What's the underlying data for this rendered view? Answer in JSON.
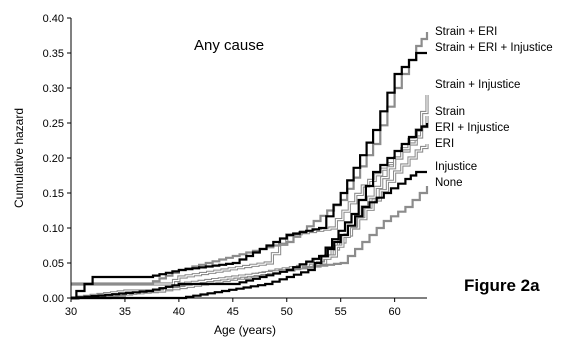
{
  "chart_data": {
    "type": "line",
    "title": "Any cause",
    "xlabel": "Age (years)",
    "ylabel": "Cumulative hazard",
    "xlim": [
      30,
      63
    ],
    "ylim": [
      0,
      0.4
    ],
    "x_ticks": [
      "30",
      "35",
      "40",
      "45",
      "50",
      "55",
      "60"
    ],
    "y_ticks": [
      "0.00",
      "0.05",
      "0.10",
      "0.15",
      "0.20",
      "0.25",
      "0.30",
      "0.35",
      "0.40"
    ],
    "grid": false,
    "figure_label": "Figure 2a",
    "colors": {
      "black": "#000000",
      "gray": "#8c8c8c"
    },
    "series": [
      {
        "name": "Strain + ERI",
        "color": "gray",
        "style": "single",
        "points": [
          [
            30,
            0.02
          ],
          [
            37,
            0.02
          ],
          [
            40,
            0.04
          ],
          [
            45,
            0.06
          ],
          [
            50,
            0.08
          ],
          [
            55,
            0.14
          ],
          [
            58,
            0.22
          ],
          [
            60,
            0.3
          ],
          [
            62,
            0.36
          ],
          [
            63,
            0.38
          ]
        ]
      },
      {
        "name": "Strain + ERI + Injustice",
        "color": "black",
        "style": "single",
        "points": [
          [
            30,
            0
          ],
          [
            30.5,
            0.01
          ],
          [
            32,
            0.03
          ],
          [
            37,
            0.03
          ],
          [
            40,
            0.04
          ],
          [
            45,
            0.05
          ],
          [
            50,
            0.09
          ],
          [
            53,
            0.1
          ],
          [
            55,
            0.15
          ],
          [
            58,
            0.24
          ],
          [
            60,
            0.32
          ],
          [
            62,
            0.35
          ],
          [
            63,
            0.35
          ]
        ]
      },
      {
        "name": "Strain + Injustice",
        "color": "gray",
        "style": "double",
        "points": [
          [
            30,
            0
          ],
          [
            35,
            0.01
          ],
          [
            38,
            0.01
          ],
          [
            40,
            0.02
          ],
          [
            45,
            0.03
          ],
          [
            50,
            0.04
          ],
          [
            54,
            0.06
          ],
          [
            57,
            0.13
          ],
          [
            60,
            0.2
          ],
          [
            62,
            0.24
          ],
          [
            63,
            0.29
          ]
        ]
      },
      {
        "name": "Strain",
        "color": "gray",
        "style": "double",
        "points": [
          [
            30,
            0.02
          ],
          [
            39,
            0.02
          ],
          [
            40,
            0.03
          ],
          [
            44,
            0.04
          ],
          [
            48,
            0.05
          ],
          [
            50,
            0.09
          ],
          [
            54,
            0.1
          ],
          [
            57,
            0.16
          ],
          [
            60,
            0.2
          ],
          [
            62,
            0.23
          ],
          [
            63,
            0.26
          ]
        ]
      },
      {
        "name": "ERI + Injustice",
        "color": "black",
        "style": "single",
        "points": [
          [
            30,
            0
          ],
          [
            37,
            0.01
          ],
          [
            40,
            0.02
          ],
          [
            45,
            0.02
          ],
          [
            50,
            0.04
          ],
          [
            53,
            0.06
          ],
          [
            56,
            0.12
          ],
          [
            58,
            0.18
          ],
          [
            60,
            0.21
          ],
          [
            62,
            0.24
          ],
          [
            63,
            0.25
          ]
        ]
      },
      {
        "name": "ERI",
        "color": "gray",
        "style": "double",
        "points": [
          [
            30,
            0
          ],
          [
            38,
            0.01
          ],
          [
            42,
            0.02
          ],
          [
            46,
            0.03
          ],
          [
            49,
            0.04
          ],
          [
            53,
            0.05
          ],
          [
            56,
            0.1
          ],
          [
            58,
            0.14
          ],
          [
            60,
            0.18
          ],
          [
            62,
            0.21
          ],
          [
            63,
            0.22
          ]
        ]
      },
      {
        "name": "Injustice",
        "color": "black",
        "style": "single",
        "points": [
          [
            30,
            0
          ],
          [
            40,
            0
          ],
          [
            44,
            0.01
          ],
          [
            48,
            0.02
          ],
          [
            52,
            0.04
          ],
          [
            55,
            0.09
          ],
          [
            57,
            0.13
          ],
          [
            59,
            0.15
          ],
          [
            61,
            0.17
          ],
          [
            62,
            0.18
          ],
          [
            63,
            0.18
          ]
        ]
      },
      {
        "name": "None",
        "color": "gray",
        "style": "single",
        "points": [
          [
            30,
            0
          ],
          [
            33,
            0
          ],
          [
            37,
            0.01
          ],
          [
            42,
            0.02
          ],
          [
            46,
            0.03
          ],
          [
            50,
            0.04
          ],
          [
            55,
            0.05
          ],
          [
            57,
            0.08
          ],
          [
            59,
            0.11
          ],
          [
            61,
            0.13
          ],
          [
            63,
            0.16
          ]
        ]
      }
    ]
  }
}
